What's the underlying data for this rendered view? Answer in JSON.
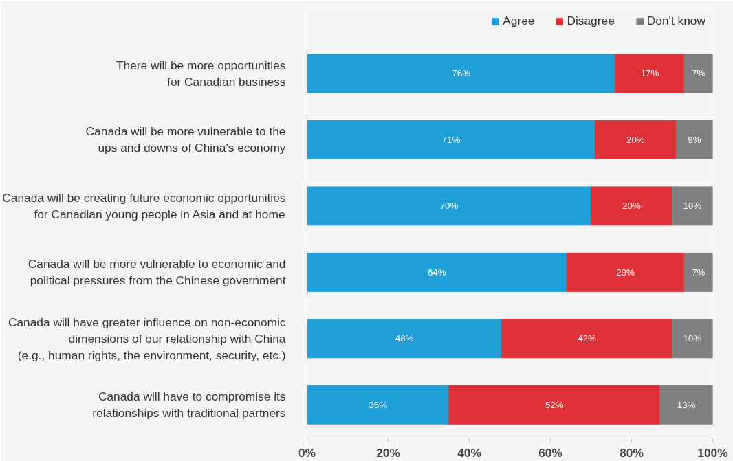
{
  "chart_data": {
    "type": "bar",
    "orientation": "horizontal",
    "stacked": true,
    "categories": [
      "There will be more opportunities\nfor Canadian business",
      "Canada will be more vulnerable to the\nups and downs of China's economy",
      "Canada will be creating future economic opportunities\nfor Canadian young people in Asia and at home",
      "Canada will be more vulnerable to economic and\npolitical pressures from the Chinese government",
      "Canada will have greater influence on non-economic\ndimensions of our relationship with China\n(e.g., human rights, the environment, security, etc.)",
      "Canada will have to compromise its\nrelationships with traditional partners"
    ],
    "series": [
      {
        "name": "Agree",
        "color": "#1f9fd8",
        "values": [
          76,
          71,
          70,
          64,
          48,
          35
        ],
        "value_labels": [
          "76%",
          "71%",
          "70%",
          "64%",
          "48%",
          "35%"
        ]
      },
      {
        "name": "Disagree",
        "color": "#e03138",
        "values": [
          17,
          20,
          20,
          29,
          42,
          52
        ],
        "value_labels": [
          "17%",
          "20%",
          "20%",
          "29%",
          "42%",
          "52%"
        ]
      },
      {
        "name": "Don't know",
        "color": "#7f7f7f",
        "values": [
          7,
          9,
          10,
          7,
          10,
          13
        ],
        "value_labels": [
          "7%",
          "9%",
          "10%",
          "7%",
          "10%",
          "13%"
        ]
      }
    ],
    "xlim": [
      0,
      100
    ],
    "xticks": [
      {
        "value": 0,
        "label": "0%"
      },
      {
        "value": 20,
        "label": "20%"
      },
      {
        "value": 40,
        "label": "40%"
      },
      {
        "value": 60,
        "label": "60%"
      },
      {
        "value": 80,
        "label": "80%"
      },
      {
        "value": 100,
        "label": "100%"
      }
    ],
    "grid": false,
    "legend": "top"
  }
}
